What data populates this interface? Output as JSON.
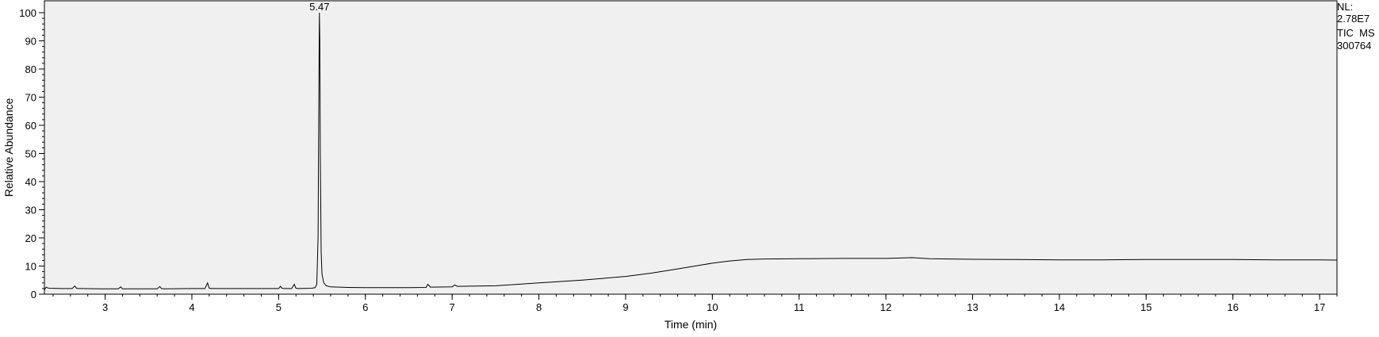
{
  "chart_data": {
    "type": "line",
    "xlabel": "Time (min)",
    "ylabel": "Relative Abundance",
    "xlim": [
      2.3,
      17.2
    ],
    "ylim": [
      0,
      100
    ],
    "x_ticks": [
      3,
      4,
      5,
      6,
      7,
      8,
      9,
      10,
      11,
      12,
      13,
      14,
      15,
      16,
      17
    ],
    "y_ticks": [
      0,
      10,
      20,
      30,
      40,
      50,
      60,
      70,
      80,
      90,
      100
    ],
    "grid": false,
    "plot_background": "#f0f0f0",
    "line_color": "#000000",
    "peak_label": "5.47",
    "series": [
      {
        "x": [
          2.3,
          2.32,
          2.34,
          2.36,
          2.5,
          2.62,
          2.65,
          2.67,
          2.69,
          2.72,
          3.0,
          3.15,
          3.18,
          3.2,
          3.23,
          3.4,
          3.6,
          3.63,
          3.65,
          3.68,
          4.0,
          4.15,
          4.18,
          4.2,
          4.23,
          4.6,
          5.0,
          5.02,
          5.04,
          5.06,
          5.15,
          5.18,
          5.2,
          5.23,
          5.38,
          5.42,
          5.44,
          5.455,
          5.462,
          5.467,
          5.47,
          5.475,
          5.48,
          5.485,
          5.49,
          5.5,
          5.52,
          5.55,
          5.6,
          5.8,
          6.0,
          6.5,
          6.7,
          6.72,
          6.75,
          7.0,
          7.03,
          7.06,
          7.5,
          8.0,
          8.5,
          9.0,
          9.3,
          9.6,
          9.8,
          10.0,
          10.2,
          10.4,
          10.6,
          11.0,
          11.5,
          12.0,
          12.3,
          12.5,
          13.0,
          13.5,
          14.0,
          14.5,
          15.0,
          15.5,
          16.0,
          16.5,
          17.0,
          17.2
        ],
        "y": [
          1.5,
          2.5,
          2.2,
          2.1,
          2.0,
          2.0,
          2.9,
          2.1,
          2.0,
          2.0,
          1.9,
          1.9,
          2.6,
          1.9,
          1.9,
          1.9,
          1.9,
          2.7,
          2.0,
          1.9,
          2.0,
          2.0,
          4.0,
          2.1,
          2.0,
          2.0,
          2.0,
          2.8,
          2.1,
          2.0,
          2.0,
          3.5,
          2.1,
          2.0,
          2.1,
          2.3,
          3.5,
          20.0,
          60.0,
          90.0,
          100.0,
          90.0,
          50.0,
          35.0,
          15.0,
          7.0,
          4.0,
          3.0,
          2.6,
          2.4,
          2.3,
          2.3,
          2.4,
          3.5,
          2.5,
          2.6,
          3.3,
          2.8,
          3.0,
          4.0,
          5.0,
          6.3,
          7.5,
          9.0,
          10.0,
          11.0,
          11.8,
          12.3,
          12.5,
          12.6,
          12.7,
          12.7,
          13.0,
          12.6,
          12.4,
          12.3,
          12.2,
          12.2,
          12.3,
          12.3,
          12.3,
          12.2,
          12.2,
          12.1
        ]
      }
    ]
  },
  "info_panel": {
    "nl_label": "NL:",
    "nl_value": "2.78E7",
    "scan_type": "TIC  MS",
    "sample": "300764"
  }
}
